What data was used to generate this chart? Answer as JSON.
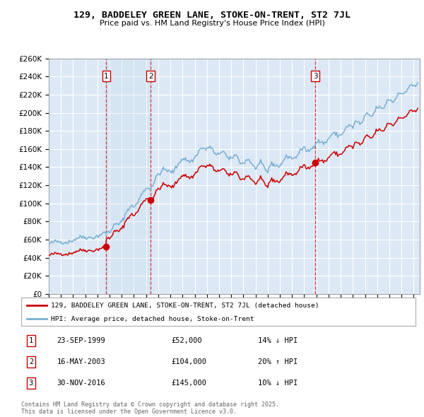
{
  "title": "129, BADDELEY GREEN LANE, STOKE-ON-TRENT, ST2 7JL",
  "subtitle": "Price paid vs. HM Land Registry's House Price Index (HPI)",
  "background_color": "#ffffff",
  "plot_bg_color": "#dce8f5",
  "grid_color": "#ffffff",
  "hpi_line_color": "#7ab0d4",
  "price_line_color": "#cc0000",
  "sale_marker_color": "#cc0000",
  "sale1_date_x": 1999.73,
  "sale1_price": 52000,
  "sale2_date_x": 2003.37,
  "sale2_price": 104000,
  "sale3_date_x": 2016.92,
  "sale3_price": 145000,
  "transaction_label1": "23-SEP-1999",
  "transaction_label2": "16-MAY-2003",
  "transaction_label3": "30-NOV-2016",
  "transaction_price1": "£52,000",
  "transaction_price2": "£104,000",
  "transaction_price3": "£145,000",
  "transaction_hpi1": "14% ↓ HPI",
  "transaction_hpi2": "20% ↑ HPI",
  "transaction_hpi3": "10% ↓ HPI",
  "legend_label1": "129, BADDELEY GREEN LANE, STOKE-ON-TRENT, ST2 7JL (detached house)",
  "legend_label2": "HPI: Average price, detached house, Stoke-on-Trent",
  "footer": "Contains HM Land Registry data © Crown copyright and database right 2025.\nThis data is licensed under the Open Government Licence v3.0.",
  "xmin": 1995.0,
  "xmax": 2025.5,
  "ymin": 0,
  "ymax": 260000,
  "yticks": [
    0,
    20000,
    40000,
    60000,
    80000,
    100000,
    120000,
    140000,
    160000,
    180000,
    200000,
    220000,
    240000,
    260000
  ]
}
